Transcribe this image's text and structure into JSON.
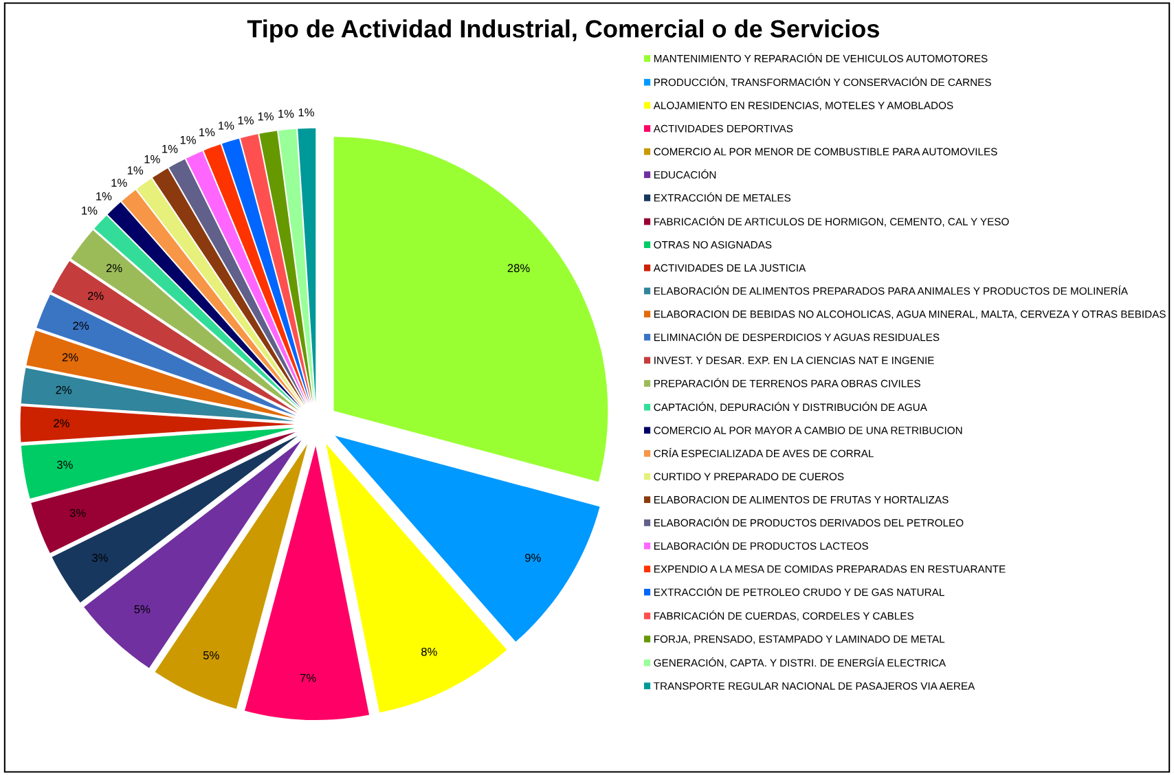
{
  "chart_data": {
    "type": "pie",
    "title": "Tipo de Actividad Industrial, Comercial o de Servicios",
    "categories": [
      "MANTENIMIENTO Y REPARACIÓN DE VEHICULOS AUTOMOTORES",
      "PRODUCCIÓN, TRANSFORMACIÓN Y CONSERVACIÓN DE CARNES",
      "ALOJAMIENTO EN RESIDENCIAS, MOTELES Y AMOBLADOS",
      "ACTIVIDADES DEPORTIVAS",
      "COMERCIO AL POR MENOR DE COMBUSTIBLE PARA AUTOMOVILES",
      "EDUCACIÓN",
      "EXTRACCIÓN DE METALES",
      "FABRICACIÓN DE ARTICULOS DE HORMIGON, CEMENTO, CAL Y YESO",
      "OTRAS NO ASIGNADAS",
      "ACTIVIDADES DE LA JUSTICIA",
      "ELABORACIÓN DE ALIMENTOS PREPARADOS PARA ANIMALES Y PRODUCTOS DE MOLINERÍA",
      "ELABORACION DE BEBIDAS NO ALCOHOLICAS, AGUA MINERAL, MALTA, CERVEZA Y OTRAS BEBIDAS",
      "ELIMINACIÓN DE DESPERDICIOS Y AGUAS RESIDUALES",
      "INVEST. Y DESAR. EXP. EN LA CIENCIAS NAT E INGENIE",
      "PREPARACIÓN DE TERRENOS PARA OBRAS CIVILES",
      "CAPTACIÓN, DEPURACIÓN Y DISTRIBUCIÓN DE AGUA",
      "COMERCIO AL POR MAYOR A CAMBIO DE UNA RETRIBUCION",
      "CRÍA ESPECIALIZADA DE AVES DE CORRAL",
      "CURTIDO Y PREPARADO DE CUEROS",
      "ELABORACION DE ALIMENTOS DE FRUTAS Y HORTALIZAS",
      "ELABORACIÓN DE PRODUCTOS DERIVADOS DEL PETROLEO",
      "ELABORACIÓN DE PRODUCTOS LACTEOS",
      "EXPENDIO A LA MESA DE COMIDAS PREPARADAS EN RESTUARANTE",
      "EXTRACCIÓN DE PETROLEO CRUDO Y DE GAS NATURAL",
      "FABRICACIÓN DE CUERDAS, CORDELES Y CABLES",
      "FORJA, PRENSADO, ESTAMPADO Y LAMINADO DE METAL",
      "GENERACIÓN, CAPTA. Y DISTRI. DE ENERGÍA ELECTRICA",
      "TRANSPORTE REGULAR NACIONAL DE PASAJEROS VIA AEREA"
    ],
    "values": [
      28,
      9,
      8,
      7,
      5,
      5,
      3,
      3,
      3,
      2,
      2,
      2,
      2,
      2,
      2,
      1,
      1,
      1,
      1,
      1,
      1,
      1,
      1,
      1,
      1,
      1,
      1,
      1
    ],
    "value_labels": [
      "28%",
      "9%",
      "8%",
      "7%",
      "5%",
      "5%",
      "3%",
      "3%",
      "3%",
      "2%",
      "2%",
      "2%",
      "2%",
      "2%",
      "2%",
      "1%",
      "1%",
      "1%",
      "1%",
      "1%",
      "1%",
      "1%",
      "1%",
      "1%",
      "1%",
      "1%",
      "1%",
      "1%"
    ],
    "colors": [
      "#99ff33",
      "#0099ff",
      "#ffff00",
      "#ff0066",
      "#cc9900",
      "#7030a0",
      "#17375e",
      "#990033",
      "#00cc66",
      "#cc2200",
      "#31859c",
      "#e26b0a",
      "#3a75c4",
      "#c43c3c",
      "#9bbb59",
      "#33dd99",
      "#000066",
      "#f79646",
      "#e6f07a",
      "#8b3a0f",
      "#60608a",
      "#ff66ff",
      "#ff3300",
      "#0066ff",
      "#ff5050",
      "#669900",
      "#99ff99",
      "#009999"
    ],
    "legend": "right"
  }
}
